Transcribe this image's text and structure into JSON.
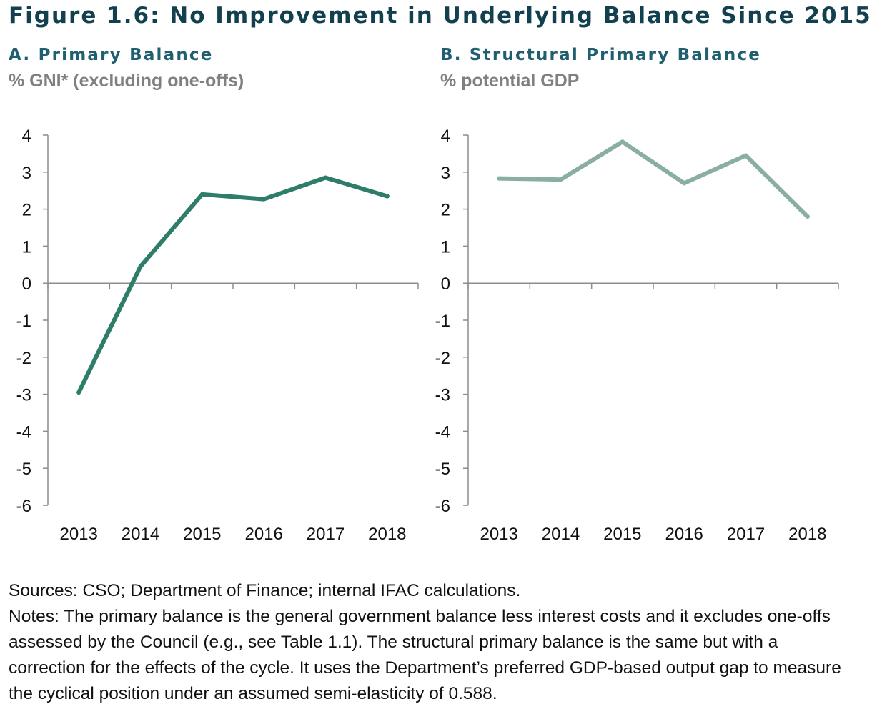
{
  "figure_title": "Figure 1.6: No Improvement in Underlying Balance Since 2015",
  "colors": {
    "panel_a_line": "#2e7d6a",
    "panel_b_line": "#8aafa2",
    "axis": "#8c8c8c",
    "title": "#12404f"
  },
  "chart_data": [
    {
      "type": "line",
      "title": "A. Primary Balance",
      "ylabel": "% GNI* (excluding one-offs)",
      "xlabel": "",
      "categories": [
        "2013",
        "2014",
        "2015",
        "2016",
        "2017",
        "2018"
      ],
      "series": [
        {
          "name": "Primary Balance",
          "values": [
            -2.95,
            0.45,
            2.4,
            2.27,
            2.85,
            2.35
          ]
        }
      ],
      "ylim": [
        -6,
        4
      ],
      "yticks": [
        "4",
        "3",
        "2",
        "1",
        "0",
        "-1",
        "-2",
        "-3",
        "-4",
        "-5",
        "-6"
      ],
      "grid": false,
      "legend": "none"
    },
    {
      "type": "line",
      "title": "B. Structural Primary Balance",
      "ylabel": "% potential GDP",
      "xlabel": "",
      "categories": [
        "2013",
        "2014",
        "2015",
        "2016",
        "2017",
        "2018"
      ],
      "series": [
        {
          "name": "Structural Primary Balance",
          "values": [
            2.83,
            2.8,
            3.82,
            2.7,
            3.45,
            1.8
          ]
        }
      ],
      "ylim": [
        -6,
        4
      ],
      "yticks": [
        "4",
        "3",
        "2",
        "1",
        "0",
        "-1",
        "-2",
        "-3",
        "-4",
        "-5",
        "-6"
      ],
      "grid": false,
      "legend": "none"
    }
  ],
  "footer": {
    "sources": "Sources: CSO; Department of Finance; internal IFAC calculations.",
    "notes": "Notes: The primary balance is the general government balance less interest costs and it excludes one-offs assessed by the Council (e.g., see Table 1.1). The structural primary balance is the same but with a correction for the effects of the cycle. It uses the Department’s preferred GDP-based output gap to measure the cyclical position under an assumed semi-elasticity of 0.588."
  }
}
